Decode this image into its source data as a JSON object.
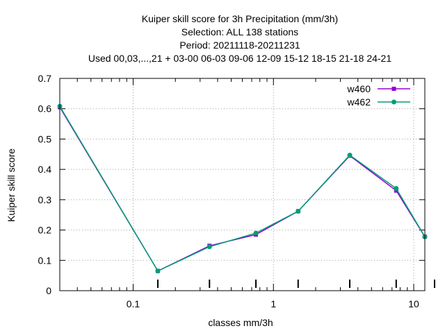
{
  "chart_data": {
    "type": "line",
    "title_lines": [
      "Kuiper skill score  for 3h Precipitation (mm/3h)",
      "Selection: ALL    138 stations",
      "Period: 20211118-20211231",
      "Used  00,03,...,21  + 03-00 06-03 09-06 12-09 15-12 18-15 21-18 24-21"
    ],
    "xlabel": "classes mm/3h",
    "ylabel": "Kuiper skill score",
    "x_scale": "log",
    "xlim": [
      0.03,
      12
    ],
    "ylim": [
      0,
      0.7
    ],
    "y_ticks": [
      0,
      0.1,
      0.2,
      0.3,
      0.4,
      0.5,
      0.6,
      0.7
    ],
    "y_tick_labels": [
      "0",
      "0.1",
      "0.2",
      "0.3",
      "0.4",
      "0.5",
      "0.6",
      "0.7"
    ],
    "x_ticks": [
      0.1,
      1,
      10
    ],
    "x_tick_labels": [
      "0.1",
      "1",
      "10"
    ],
    "grid": true,
    "legend_position": "top-right",
    "x": [
      0.03,
      0.15,
      0.35,
      0.75,
      1.5,
      3.5,
      7.5,
      12
    ],
    "series": [
      {
        "name": "w460",
        "color": "#9400d3",
        "values": [
          0.605,
          0.065,
          0.148,
          0.185,
          0.262,
          0.445,
          0.33,
          0.178
        ]
      },
      {
        "name": "w462",
        "color": "#009e73",
        "values": [
          0.608,
          0.065,
          0.145,
          0.19,
          0.262,
          0.447,
          0.337,
          0.178
        ]
      }
    ]
  }
}
